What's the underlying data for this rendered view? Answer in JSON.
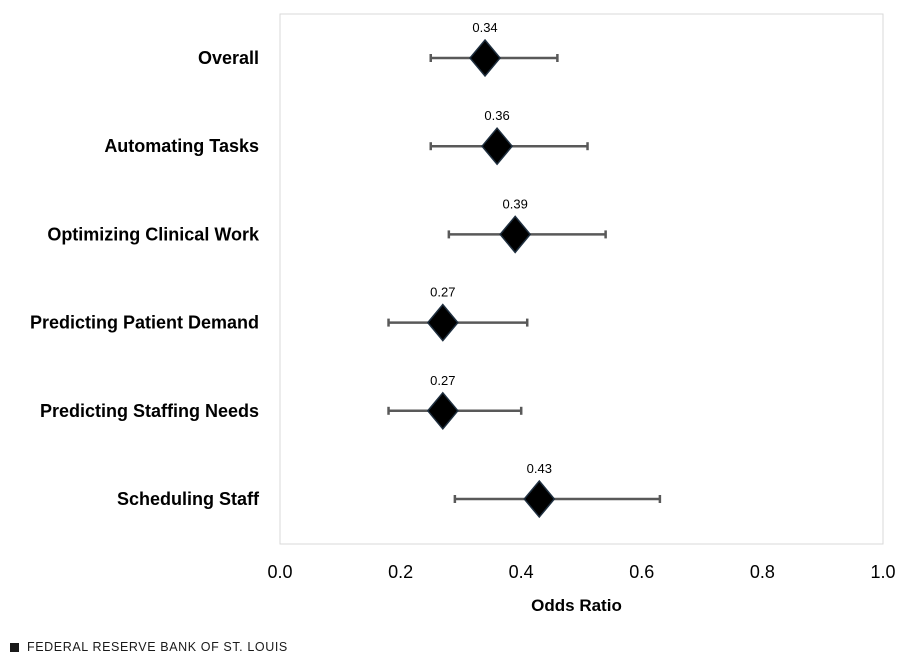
{
  "chart_data": {
    "type": "scatter",
    "categories": [
      "Overall",
      "Automating Tasks",
      "Optimizing Clinical Work",
      "Predicting Patient Demand",
      "Predicting Staffing Needs",
      "Scheduling Staff"
    ],
    "series": [
      {
        "values": [
          0.34,
          0.36,
          0.39,
          0.27,
          0.27,
          0.43
        ],
        "lower": [
          0.25,
          0.25,
          0.28,
          0.18,
          0.18,
          0.29
        ],
        "upper": [
          0.46,
          0.51,
          0.54,
          0.41,
          0.4,
          0.63
        ]
      }
    ],
    "data_labels": [
      "0.34",
      "0.36",
      "0.39",
      "0.27",
      "0.27",
      "0.43"
    ],
    "xlabel": "Odds Ratio",
    "xlim": [
      0.0,
      1.0
    ],
    "xticks": [
      "0.0",
      "0.2",
      "0.4",
      "0.6",
      "0.8",
      "1.0"
    ],
    "grid": false,
    "marker": "diamond",
    "colors": {
      "marker": "#000000",
      "marker_edge": "#1f2f3f",
      "error_bar": "#595959",
      "plot_border": "#d9d9d9"
    }
  },
  "footer": {
    "source": "FEDERAL RESERVE BANK OF ST. LOUIS"
  }
}
